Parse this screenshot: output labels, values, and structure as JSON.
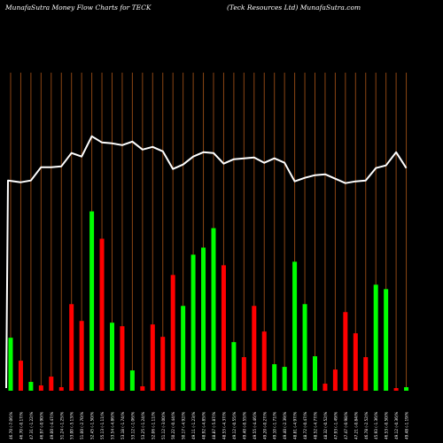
{
  "header": {
    "left_title": "MunafaSutra  Money Flow  Charts for TECK",
    "right_title": "(Teck Resources Ltd) MunafaSutra.com"
  },
  "colors": {
    "background": "#000000",
    "gridline": "#8B4513",
    "line": "#ffffff",
    "up_bar": "#00ff00",
    "down_bar": "#ff0000"
  },
  "chart_data": {
    "type": "bar",
    "title": "MunafaSutra  Money Flow  Charts for TECK",
    "subtitle": "(Teck Resources Ltd) MunafaSutra.com",
    "series": [
      {
        "kind": "bar",
        "values": [
          60,
          34,
          10,
          6,
          16,
          4,
          98,
          79,
          203,
          172,
          77,
          73,
          23,
          5,
          75,
          61,
          131,
          96,
          154,
          162,
          184,
          142,
          55,
          38,
          96,
          67,
          30,
          27,
          146,
          98,
          39,
          8,
          24,
          89,
          65,
          38,
          120,
          115,
          3,
          4
        ],
        "colors": [
          "up",
          "down",
          "up",
          "down",
          "down",
          "down",
          "down",
          "down",
          "up",
          "down",
          "up",
          "down",
          "up",
          "down",
          "down",
          "down",
          "down",
          "up",
          "up",
          "up",
          "up",
          "down",
          "up",
          "down",
          "down",
          "down",
          "up",
          "up",
          "up",
          "up",
          "up",
          "down",
          "down",
          "down",
          "down",
          "down",
          "up",
          "up",
          "down",
          "up"
        ]
      },
      {
        "kind": "line",
        "values": [
          238,
          236,
          238,
          253,
          253,
          254,
          269,
          265,
          288,
          281,
          280,
          278,
          282,
          273,
          276,
          271,
          251,
          256,
          265,
          270,
          269,
          257,
          262,
          263,
          264,
          258,
          263,
          258,
          237,
          241,
          244,
          245,
          240,
          235,
          237,
          238,
          252,
          255,
          270,
          252
        ]
      }
    ],
    "x_labels": [
      "46.70 (-7.06)%",
      "46.70 (-0.17)%",
      "47.31 (-1.22)%",
      "46.97 (-0.90)%",
      "49.00 (-4.47)%",
      "51.24 (-1.25)%",
      "53.00 (-5.13)%",
      "51.00 (-2.70)%",
      "52.45 (-1.50)%",
      "55.13 (-1.11)%",
      "53.54 (-4.86)%",
      "53.18 (-1.74)%",
      "53.12 (-1.06)%",
      "53.25 (-1.24)%",
      "52.06 (-1.11)%",
      "51.12 (-3.00)%",
      "50.22 (-0.44)%",
      "50.17 (-4.92)%",
      "49.11 (-1.23)%",
      "48.92 (-4.85)%",
      "48.87 (-5.87)%",
      "48.53 (-4.37)%",
      "49.12 (-0.55)%",
      "49.40 (-0.55)%",
      "49.55 (-4.46)%",
      "49.20 (-0.27)%",
      "49.10 (-1.71)%",
      "49.40 (-2.39)%",
      "48.81 (-4.97)%",
      "48.72 (-0.47)%",
      "48.52 (-4.77)%",
      "48.32 (-0.52)%",
      "47.93 (-1.49)%",
      "47.47 (-0.98)%",
      "47.21 (-0.84)%",
      "46.78 (-2.52)%",
      "45.93 (-1.36)%",
      "46.53 (-0.50)%",
      "49.12 (-0.36)%",
      "49.48 (-1.19)%"
    ],
    "ylim": [
      0,
      360
    ],
    "grid": true
  }
}
